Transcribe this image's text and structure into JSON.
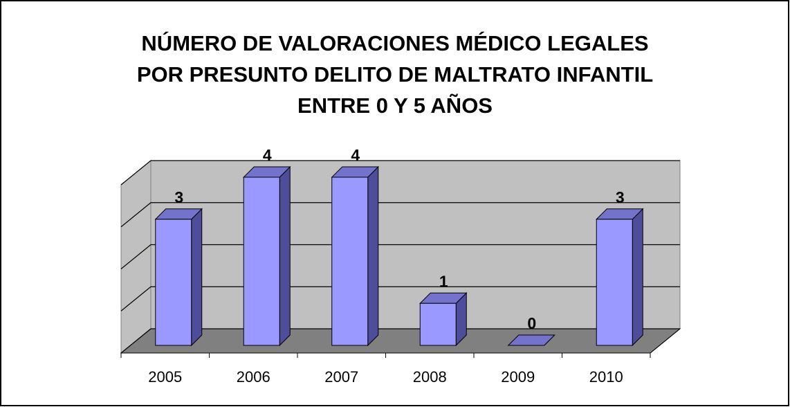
{
  "chart_data": {
    "type": "bar3d",
    "title": "NÚMERO DE VALORACIONES MÉDICO LEGALES POR PRESUNTO DELITO DE MALTRATO INFANTIL ENTRE 0 Y 5 AÑOS",
    "categories": [
      "2005",
      "2006",
      "2007",
      "2008",
      "2009",
      "2010"
    ],
    "values": [
      3,
      4,
      4,
      1,
      0,
      3
    ],
    "color": "#9999ff",
    "ylim": [
      0,
      4
    ],
    "yticks": [
      0,
      1,
      2,
      3,
      4
    ],
    "grid": true
  }
}
